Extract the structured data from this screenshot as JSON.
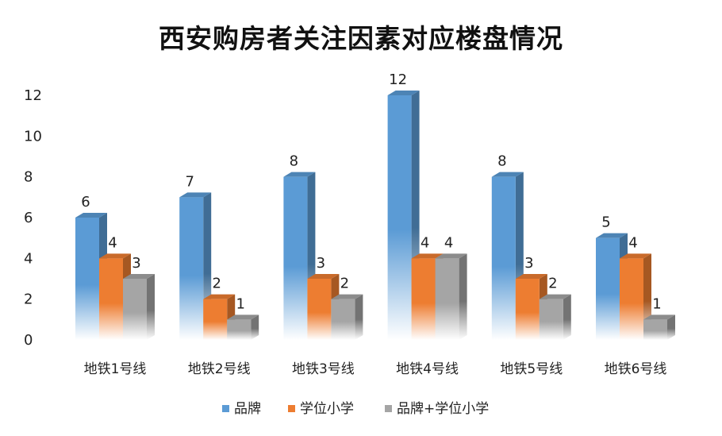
{
  "chart_data": {
    "type": "bar",
    "title": "西安购房者关注因素对应楼盘情况",
    "categories": [
      "地铁1号线",
      "地铁2号线",
      "地铁3号线",
      "地铁4号线",
      "地铁5号线",
      "地铁6号线"
    ],
    "series": [
      {
        "name": "品牌",
        "values": [
          6,
          7,
          8,
          12,
          8,
          5
        ],
        "color": "#5b9bd5"
      },
      {
        "name": "学位小学",
        "values": [
          4,
          2,
          3,
          4,
          3,
          4
        ],
        "color": "#ed7d31"
      },
      {
        "name": "品牌+学位小学",
        "values": [
          3,
          1,
          2,
          4,
          2,
          1
        ],
        "color": "#a5a5a5"
      }
    ],
    "ylim": [
      0,
      12
    ],
    "yticks": [
      0,
      2,
      4,
      6,
      8,
      10,
      12
    ],
    "grid": false,
    "legend": "bottom",
    "style": "3d-column"
  }
}
